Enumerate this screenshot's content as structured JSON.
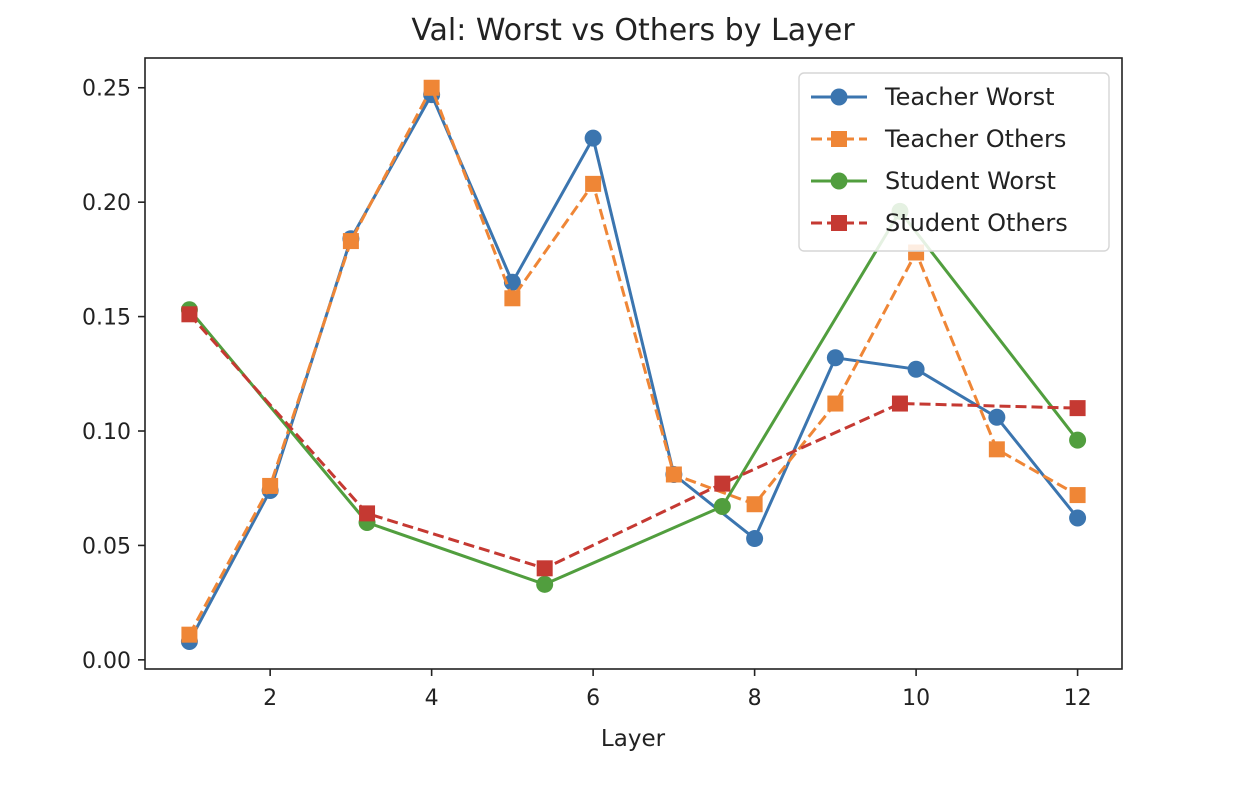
{
  "chart_data": {
    "type": "line",
    "title": "Val: Worst vs Others by Layer",
    "xlabel": "Layer",
    "ylabel": "",
    "xlim": [
      0.45,
      12.55
    ],
    "ylim": [
      -0.004,
      0.263
    ],
    "xticks": [
      2,
      4,
      6,
      8,
      10,
      12
    ],
    "yticks": [
      0.0,
      0.05,
      0.1,
      0.15,
      0.2,
      0.25
    ],
    "ytick_labels": [
      "0.00",
      "0.05",
      "0.10",
      "0.15",
      "0.20",
      "0.25"
    ],
    "grid": false,
    "legend_position": "top-right",
    "series": [
      {
        "name": "Teacher Worst",
        "color": "#3b75af",
        "line_style": "solid",
        "marker": "circle",
        "x": [
          1,
          2,
          3,
          4,
          5,
          6,
          7,
          8,
          9,
          10,
          11,
          12
        ],
        "y": [
          0.008,
          0.074,
          0.184,
          0.247,
          0.165,
          0.228,
          0.081,
          0.053,
          0.132,
          0.127,
          0.106,
          0.062
        ]
      },
      {
        "name": "Teacher Others",
        "color": "#ef8636",
        "line_style": "dashed",
        "marker": "square",
        "x": [
          1,
          2,
          3,
          4,
          5,
          6,
          7,
          8,
          9,
          10,
          11,
          12
        ],
        "y": [
          0.011,
          0.076,
          0.183,
          0.25,
          0.158,
          0.208,
          0.081,
          0.068,
          0.112,
          0.178,
          0.092,
          0.072
        ]
      },
      {
        "name": "Student Worst",
        "color": "#519e3e",
        "line_style": "solid",
        "marker": "circle",
        "x": [
          1,
          3.2,
          5.4,
          7.6,
          9.8,
          12
        ],
        "y": [
          0.153,
          0.06,
          0.033,
          0.067,
          0.196,
          0.096
        ]
      },
      {
        "name": "Student Others",
        "color": "#c53932",
        "line_style": "dashed",
        "marker": "square",
        "x": [
          1,
          3.2,
          5.4,
          7.6,
          9.8,
          12
        ],
        "y": [
          0.151,
          0.064,
          0.04,
          0.077,
          0.112,
          0.11
        ]
      }
    ]
  }
}
